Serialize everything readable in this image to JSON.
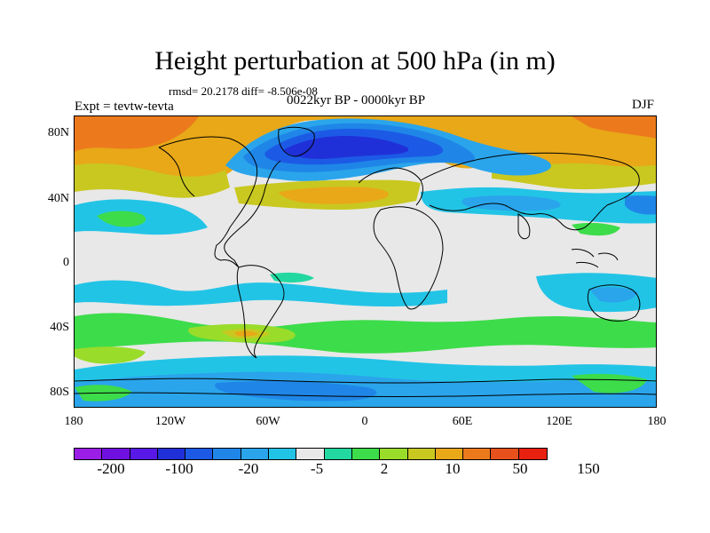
{
  "title": "Height perturbation at 500 hPa (in m)",
  "stats": "rmsd= 20.2178 diff= -8.506e-08",
  "experiment": "Expt = tevtw-tevta",
  "period": "0022kyr BP - 0000kyr BP",
  "season": "DJF",
  "lat_labels": [
    "80N",
    "40N",
    "0",
    "40S",
    "80S"
  ],
  "lon_labels": [
    "180",
    "120W",
    "60W",
    "0",
    "60E",
    "120E",
    "180"
  ],
  "colorbar": {
    "colors": [
      "#9a1ee6",
      "#7010e0",
      "#5818e8",
      "#2030d8",
      "#1c5ae6",
      "#1f86e8",
      "#2aa5eb",
      "#22c4e6",
      "#e8e8e8",
      "#22d8a0",
      "#3ddc4a",
      "#9adc2a",
      "#c8c820",
      "#e8a818",
      "#ec7a1c",
      "#e8501c",
      "#e82010"
    ],
    "labels": [
      "-200",
      "-100",
      "-20",
      "-5",
      "2",
      "10",
      "50",
      "150"
    ]
  },
  "palette": {
    "white": "#e8e8e8",
    "cyan": "#22c4e6",
    "skyblue": "#2aa5eb",
    "blue": "#1f86e8",
    "deepblue": "#1c5ae6",
    "navy": "#2030d8",
    "violet": "#5818e8",
    "teal": "#22d8a0",
    "green": "#3ddc4a",
    "lime": "#9adc2a",
    "olive": "#c8c820",
    "orange": "#e8a818",
    "darkorange": "#ec7a1c"
  }
}
